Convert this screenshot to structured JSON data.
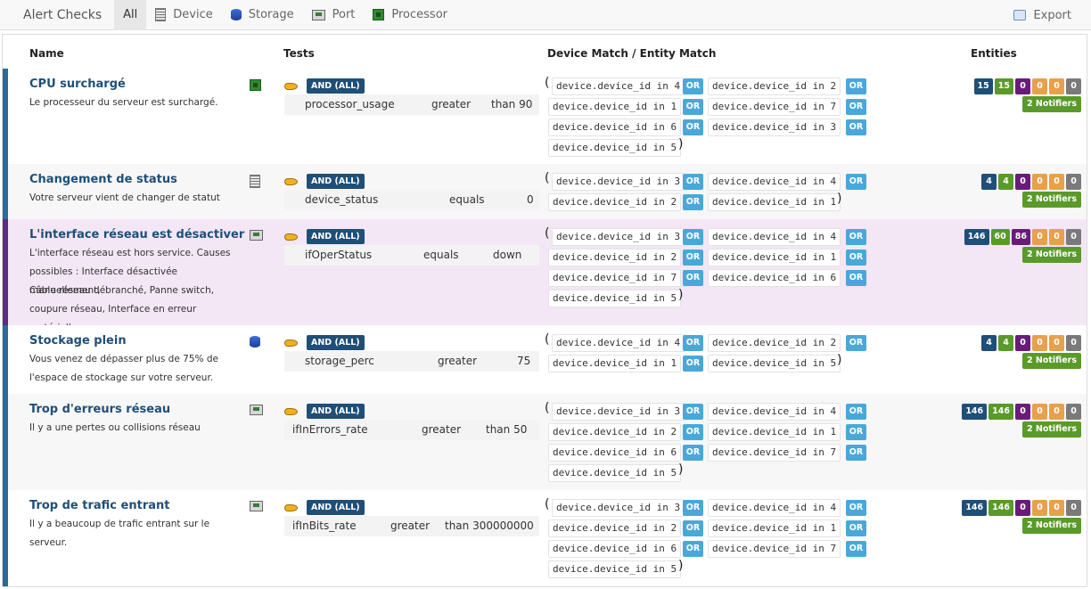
{
  "topbar": {
    "brand": "Alert Checks",
    "tabs": [
      {
        "label": "All",
        "icon": "none"
      },
      {
        "label": "Device",
        "icon": "device-icon"
      },
      {
        "label": "Storage",
        "icon": "storage-icon"
      },
      {
        "label": "Port",
        "icon": "port-icon"
      },
      {
        "label": "Processor",
        "icon": "processor-icon"
      }
    ],
    "export_label": "Export"
  },
  "columns": {
    "name": "Name",
    "tests": "Tests",
    "match": "Device Match / Entity Match",
    "entities": "Entities"
  },
  "rows": [
    {
      "title": "CPU surchargé",
      "desc": [
        "Le processeur du serveur est surchargé."
      ],
      "entity_icon": "processor-icon",
      "and_label": "AND (ALL)",
      "test": {
        "metric": "processor_usage",
        "op": "greater",
        "value": "than 90"
      },
      "matches": [
        "device.device_id in 4",
        "device.device_id in 2",
        "device.device_id in 1",
        "device.device_id in 7",
        "device.device_id in 6",
        "device.device_id in 3",
        "device.device_id in 5"
      ],
      "or_label": "OR",
      "badges": [
        "15",
        "15",
        "0",
        "0",
        "0",
        "0"
      ],
      "notifiers": "2 Notifiers"
    },
    {
      "title": "Changement de status",
      "desc": [
        "Votre serveur vient de changer de statut"
      ],
      "entity_icon": "device-icon",
      "and_label": "AND (ALL)",
      "test": {
        "metric": "device_status",
        "op": "equals",
        "value": "0"
      },
      "matches": [
        "device.device_id in 3",
        "device.device_id in 4",
        "device.device_id in 2",
        "device.device_id in 1"
      ],
      "or_label": "OR",
      "badges": [
        "4",
        "4",
        "0",
        "0",
        "0",
        "0"
      ],
      "notifiers": "2 Notifiers"
    },
    {
      "title": "L'interface réseau est désactiver",
      "desc": [
        "L'interface réseau est hors service. Causes",
        "possibles : Interface désactivée manuellement,",
        "Câble réseau débranché, Panne switch,",
        "coupure réseau, Interface en erreur matérielle."
      ],
      "entity_icon": "port-icon",
      "and_label": "AND (ALL)",
      "test": {
        "metric": "ifOperStatus",
        "op": "equals",
        "value": "down"
      },
      "matches": [
        "device.device_id in 3",
        "device.device_id in 4",
        "device.device_id in 2",
        "device.device_id in 1",
        "device.device_id in 7",
        "device.device_id in 6",
        "device.device_id in 5"
      ],
      "or_label": "OR",
      "badges": [
        "146",
        "60",
        "86",
        "0",
        "0",
        "0"
      ],
      "notifiers": "2 Notifiers"
    },
    {
      "title": "Stockage plein",
      "desc": [
        "Vous venez de dépasser plus de 75% de",
        "l'espace de stockage sur votre serveur."
      ],
      "entity_icon": "storage-icon",
      "and_label": "AND (ALL)",
      "test": {
        "metric": "storage_perc",
        "op": "greater",
        "value": "75"
      },
      "matches": [
        "device.device_id in 4",
        "device.device_id in 2",
        "device.device_id in 1",
        "device.device_id in 5"
      ],
      "or_label": "OR",
      "badges": [
        "4",
        "4",
        "0",
        "0",
        "0",
        "0"
      ],
      "notifiers": "2 Notifiers"
    },
    {
      "title": "Trop d'erreurs réseau",
      "desc": [
        "Il y a une pertes ou collisions réseau"
      ],
      "entity_icon": "port-icon",
      "and_label": "AND (ALL)",
      "test": {
        "metric": "ifInErrors_rate",
        "op": "greater",
        "value": "than 50"
      },
      "matches": [
        "device.device_id in 3",
        "device.device_id in 4",
        "device.device_id in 2",
        "device.device_id in 1",
        "device.device_id in 6",
        "device.device_id in 7",
        "device.device_id in 5"
      ],
      "or_label": "OR",
      "badges": [
        "146",
        "146",
        "0",
        "0",
        "0",
        "0"
      ],
      "notifiers": "2 Notifiers"
    },
    {
      "title": "Trop de trafic entrant",
      "desc": [
        "Il y a beaucoup de trafic entrant sur le serveur."
      ],
      "entity_icon": "port-icon",
      "and_label": "AND (ALL)",
      "test": {
        "metric": "ifInBits_rate",
        "op": "greater",
        "value": "than 300000000"
      },
      "matches": [
        "device.device_id in 3",
        "device.device_id in 4",
        "device.device_id in 2",
        "device.device_id in 1",
        "device.device_id in 6",
        "device.device_id in 7",
        "device.device_id in 5"
      ],
      "or_label": "OR",
      "badges": [
        "146",
        "146",
        "0",
        "0",
        "0",
        "0"
      ],
      "notifiers": "2 Notifiers"
    }
  ]
}
